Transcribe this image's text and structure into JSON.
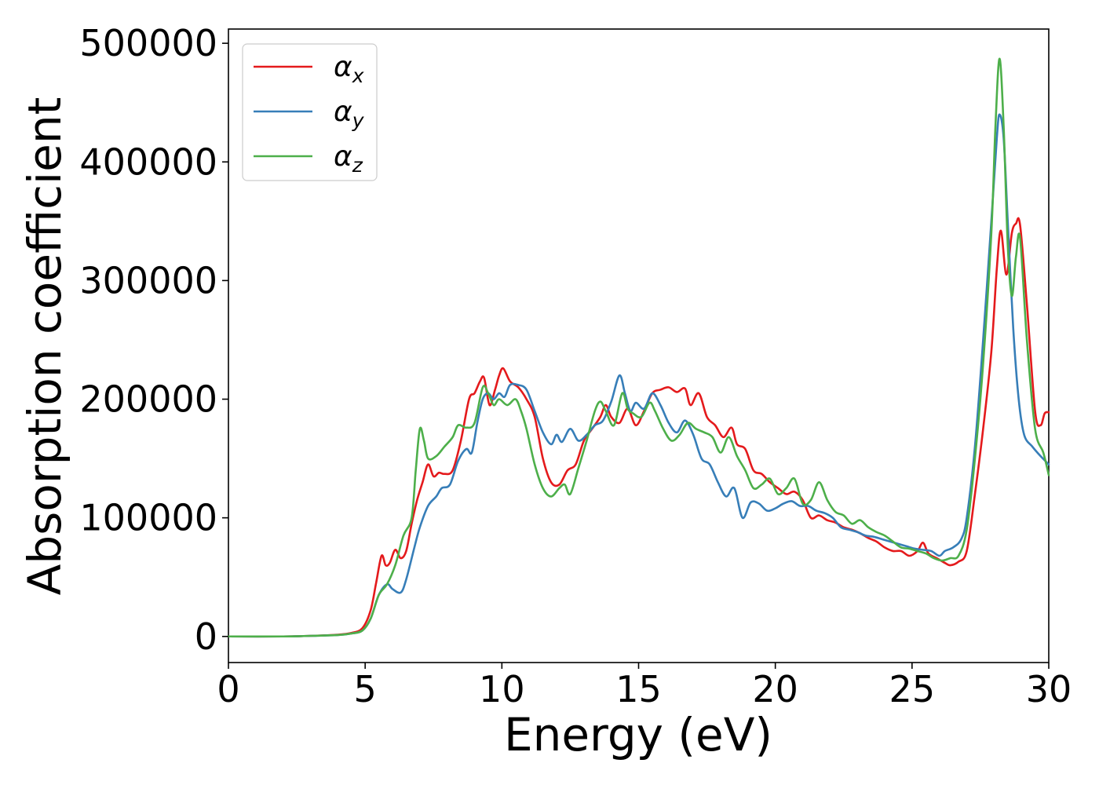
{
  "chart_data": {
    "type": "line",
    "title": "",
    "xlabel": "Energy (eV)",
    "ylabel": "Absorption coefficient",
    "xlim": [
      0,
      30
    ],
    "ylim": [
      -22000,
      512000
    ],
    "xticks": [
      0,
      5,
      10,
      15,
      20,
      25,
      30
    ],
    "xtick_labels": [
      "0",
      "5",
      "10",
      "15",
      "20",
      "25",
      "30"
    ],
    "yticks": [
      0,
      100000,
      200000,
      300000,
      400000,
      500000
    ],
    "ytick_labels": [
      "0",
      "100000",
      "200000",
      "300000",
      "400000",
      "500000"
    ],
    "grid": false,
    "legend_position": "top-left",
    "series": [
      {
        "name": "α_x",
        "label_main": "α",
        "label_sub": "x",
        "color": "#e41a1c",
        "points": [
          [
            0,
            0
          ],
          [
            2,
            0
          ],
          [
            3,
            500
          ],
          [
            4,
            1500
          ],
          [
            4.5,
            3000
          ],
          [
            4.9,
            7000
          ],
          [
            5.2,
            22000
          ],
          [
            5.4,
            45000
          ],
          [
            5.6,
            68000
          ],
          [
            5.75,
            60000
          ],
          [
            5.9,
            62000
          ],
          [
            6.1,
            73000
          ],
          [
            6.3,
            66000
          ],
          [
            6.5,
            72000
          ],
          [
            6.7,
            95000
          ],
          [
            6.9,
            115000
          ],
          [
            7.1,
            130000
          ],
          [
            7.3,
            145000
          ],
          [
            7.5,
            135000
          ],
          [
            7.7,
            138000
          ],
          [
            7.9,
            137000
          ],
          [
            8.2,
            140000
          ],
          [
            8.5,
            165000
          ],
          [
            8.8,
            200000
          ],
          [
            9.0,
            205000
          ],
          [
            9.2,
            215000
          ],
          [
            9.35,
            218000
          ],
          [
            9.55,
            195000
          ],
          [
            9.75,
            208000
          ],
          [
            9.9,
            220000
          ],
          [
            10.05,
            226000
          ],
          [
            10.3,
            215000
          ],
          [
            10.6,
            210000
          ],
          [
            10.9,
            200000
          ],
          [
            11.2,
            185000
          ],
          [
            11.5,
            150000
          ],
          [
            11.8,
            130000
          ],
          [
            12.1,
            128000
          ],
          [
            12.4,
            140000
          ],
          [
            12.7,
            145000
          ],
          [
            13.0,
            165000
          ],
          [
            13.3,
            175000
          ],
          [
            13.6,
            185000
          ],
          [
            13.8,
            195000
          ],
          [
            14.0,
            185000
          ],
          [
            14.3,
            180000
          ],
          [
            14.6,
            192000
          ],
          [
            14.9,
            178000
          ],
          [
            15.2,
            190000
          ],
          [
            15.5,
            205000
          ],
          [
            15.8,
            208000
          ],
          [
            16.1,
            210000
          ],
          [
            16.4,
            206000
          ],
          [
            16.7,
            209000
          ],
          [
            16.9,
            195000
          ],
          [
            17.2,
            205000
          ],
          [
            17.5,
            185000
          ],
          [
            17.8,
            178000
          ],
          [
            18.1,
            168000
          ],
          [
            18.4,
            176000
          ],
          [
            18.6,
            162000
          ],
          [
            18.9,
            158000
          ],
          [
            19.2,
            140000
          ],
          [
            19.5,
            137000
          ],
          [
            19.8,
            130000
          ],
          [
            20.1,
            125000
          ],
          [
            20.4,
            120000
          ],
          [
            20.7,
            122000
          ],
          [
            21.0,
            115000
          ],
          [
            21.3,
            100000
          ],
          [
            21.6,
            102000
          ],
          [
            21.9,
            98000
          ],
          [
            22.2,
            96000
          ],
          [
            22.5,
            92000
          ],
          [
            22.8,
            90000
          ],
          [
            23.1,
            87000
          ],
          [
            23.4,
            83000
          ],
          [
            23.7,
            80000
          ],
          [
            24.0,
            75000
          ],
          [
            24.3,
            72000
          ],
          [
            24.6,
            72000
          ],
          [
            24.9,
            68000
          ],
          [
            25.2,
            72000
          ],
          [
            25.4,
            79000
          ],
          [
            25.6,
            70000
          ],
          [
            25.9,
            66000
          ],
          [
            26.2,
            62000
          ],
          [
            26.4,
            60000
          ],
          [
            26.7,
            63000
          ],
          [
            27.0,
            72000
          ],
          [
            27.3,
            120000
          ],
          [
            27.6,
            175000
          ],
          [
            27.9,
            240000
          ],
          [
            28.1,
            310000
          ],
          [
            28.25,
            342000
          ],
          [
            28.45,
            305000
          ],
          [
            28.65,
            340000
          ],
          [
            28.8,
            348000
          ],
          [
            28.95,
            347000
          ],
          [
            29.2,
            280000
          ],
          [
            29.5,
            190000
          ],
          [
            29.7,
            178000
          ],
          [
            29.85,
            188000
          ],
          [
            30.0,
            189000
          ]
        ]
      },
      {
        "name": "α_y",
        "label_main": "α",
        "label_sub": "y",
        "color": "#377eb8",
        "points": [
          [
            0,
            0
          ],
          [
            2,
            0
          ],
          [
            3,
            500
          ],
          [
            4,
            1200
          ],
          [
            4.5,
            2500
          ],
          [
            4.9,
            5000
          ],
          [
            5.2,
            15000
          ],
          [
            5.5,
            35000
          ],
          [
            5.8,
            44000
          ],
          [
            6.0,
            40000
          ],
          [
            6.3,
            37000
          ],
          [
            6.5,
            48000
          ],
          [
            6.8,
            75000
          ],
          [
            7.0,
            92000
          ],
          [
            7.3,
            110000
          ],
          [
            7.6,
            118000
          ],
          [
            7.8,
            125000
          ],
          [
            8.1,
            128000
          ],
          [
            8.4,
            148000
          ],
          [
            8.7,
            158000
          ],
          [
            8.9,
            155000
          ],
          [
            9.1,
            180000
          ],
          [
            9.3,
            200000
          ],
          [
            9.5,
            205000
          ],
          [
            9.7,
            200000
          ],
          [
            9.9,
            205000
          ],
          [
            10.1,
            202000
          ],
          [
            10.3,
            212000
          ],
          [
            10.6,
            212000
          ],
          [
            10.9,
            208000
          ],
          [
            11.2,
            190000
          ],
          [
            11.5,
            172000
          ],
          [
            11.8,
            162000
          ],
          [
            12.0,
            170000
          ],
          [
            12.2,
            164000
          ],
          [
            12.5,
            175000
          ],
          [
            12.8,
            165000
          ],
          [
            13.1,
            170000
          ],
          [
            13.4,
            178000
          ],
          [
            13.7,
            182000
          ],
          [
            14.0,
            198000
          ],
          [
            14.3,
            220000
          ],
          [
            14.5,
            205000
          ],
          [
            14.7,
            190000
          ],
          [
            14.9,
            197000
          ],
          [
            15.2,
            192000
          ],
          [
            15.5,
            205000
          ],
          [
            15.8,
            195000
          ],
          [
            16.1,
            180000
          ],
          [
            16.4,
            172000
          ],
          [
            16.7,
            182000
          ],
          [
            17.0,
            170000
          ],
          [
            17.3,
            150000
          ],
          [
            17.6,
            145000
          ],
          [
            17.9,
            130000
          ],
          [
            18.2,
            118000
          ],
          [
            18.5,
            125000
          ],
          [
            18.8,
            100000
          ],
          [
            19.1,
            113000
          ],
          [
            19.4,
            112000
          ],
          [
            19.7,
            106000
          ],
          [
            20.0,
            108000
          ],
          [
            20.3,
            112000
          ],
          [
            20.6,
            114000
          ],
          [
            20.9,
            110000
          ],
          [
            21.2,
            110000
          ],
          [
            21.5,
            106000
          ],
          [
            21.8,
            104000
          ],
          [
            22.1,
            100000
          ],
          [
            22.4,
            92000
          ],
          [
            22.7,
            90000
          ],
          [
            23.0,
            88000
          ],
          [
            23.3,
            85000
          ],
          [
            23.6,
            84000
          ],
          [
            23.9,
            82000
          ],
          [
            24.2,
            80000
          ],
          [
            24.5,
            78000
          ],
          [
            24.8,
            76000
          ],
          [
            25.1,
            74000
          ],
          [
            25.4,
            73000
          ],
          [
            25.7,
            72000
          ],
          [
            26.0,
            68000
          ],
          [
            26.2,
            72000
          ],
          [
            26.5,
            75000
          ],
          [
            26.8,
            82000
          ],
          [
            27.0,
            100000
          ],
          [
            27.3,
            160000
          ],
          [
            27.6,
            250000
          ],
          [
            27.9,
            350000
          ],
          [
            28.1,
            420000
          ],
          [
            28.2,
            440000
          ],
          [
            28.35,
            420000
          ],
          [
            28.5,
            350000
          ],
          [
            28.7,
            260000
          ],
          [
            28.9,
            200000
          ],
          [
            29.1,
            170000
          ],
          [
            29.4,
            160000
          ],
          [
            29.7,
            152000
          ],
          [
            30.0,
            145000
          ]
        ]
      },
      {
        "name": "α_z",
        "label_main": "α",
        "label_sub": "z",
        "color": "#4daf4a",
        "points": [
          [
            0,
            0
          ],
          [
            2,
            0
          ],
          [
            3,
            500
          ],
          [
            4,
            1200
          ],
          [
            4.5,
            2500
          ],
          [
            4.9,
            5000
          ],
          [
            5.2,
            15000
          ],
          [
            5.5,
            35000
          ],
          [
            5.8,
            44000
          ],
          [
            6.1,
            60000
          ],
          [
            6.4,
            85000
          ],
          [
            6.7,
            100000
          ],
          [
            6.85,
            140000
          ],
          [
            7.0,
            175000
          ],
          [
            7.15,
            165000
          ],
          [
            7.3,
            150000
          ],
          [
            7.6,
            152000
          ],
          [
            7.9,
            160000
          ],
          [
            8.2,
            168000
          ],
          [
            8.4,
            178000
          ],
          [
            8.7,
            176000
          ],
          [
            9.0,
            180000
          ],
          [
            9.3,
            210000
          ],
          [
            9.5,
            205000
          ],
          [
            9.7,
            195000
          ],
          [
            9.9,
            200000
          ],
          [
            10.2,
            195000
          ],
          [
            10.5,
            200000
          ],
          [
            10.7,
            190000
          ],
          [
            10.9,
            175000
          ],
          [
            11.2,
            145000
          ],
          [
            11.5,
            125000
          ],
          [
            11.8,
            118000
          ],
          [
            12.1,
            125000
          ],
          [
            12.3,
            128000
          ],
          [
            12.5,
            120000
          ],
          [
            12.8,
            142000
          ],
          [
            13.1,
            165000
          ],
          [
            13.4,
            190000
          ],
          [
            13.6,
            198000
          ],
          [
            13.8,
            190000
          ],
          [
            14.1,
            178000
          ],
          [
            14.4,
            205000
          ],
          [
            14.6,
            192000
          ],
          [
            14.8,
            188000
          ],
          [
            15.1,
            185000
          ],
          [
            15.4,
            197000
          ],
          [
            15.6,
            190000
          ],
          [
            15.9,
            175000
          ],
          [
            16.2,
            165000
          ],
          [
            16.5,
            170000
          ],
          [
            16.8,
            180000
          ],
          [
            17.1,
            175000
          ],
          [
            17.4,
            172000
          ],
          [
            17.7,
            168000
          ],
          [
            18.0,
            155000
          ],
          [
            18.3,
            168000
          ],
          [
            18.6,
            152000
          ],
          [
            18.9,
            140000
          ],
          [
            19.2,
            125000
          ],
          [
            19.5,
            128000
          ],
          [
            19.8,
            133000
          ],
          [
            20.1,
            120000
          ],
          [
            20.4,
            125000
          ],
          [
            20.7,
            133000
          ],
          [
            21.0,
            112000
          ],
          [
            21.3,
            115000
          ],
          [
            21.6,
            130000
          ],
          [
            21.9,
            115000
          ],
          [
            22.2,
            105000
          ],
          [
            22.5,
            102000
          ],
          [
            22.8,
            95000
          ],
          [
            23.1,
            98000
          ],
          [
            23.4,
            92000
          ],
          [
            23.7,
            88000
          ],
          [
            24.0,
            85000
          ],
          [
            24.3,
            80000
          ],
          [
            24.6,
            75000
          ],
          [
            24.9,
            74000
          ],
          [
            25.2,
            72000
          ],
          [
            25.5,
            70000
          ],
          [
            25.8,
            66000
          ],
          [
            26.1,
            64000
          ],
          [
            26.4,
            66000
          ],
          [
            26.7,
            68000
          ],
          [
            27.0,
            90000
          ],
          [
            27.3,
            150000
          ],
          [
            27.6,
            230000
          ],
          [
            27.9,
            340000
          ],
          [
            28.05,
            430000
          ],
          [
            28.2,
            487000
          ],
          [
            28.35,
            430000
          ],
          [
            28.5,
            330000
          ],
          [
            28.65,
            287000
          ],
          [
            28.8,
            320000
          ],
          [
            28.95,
            336000
          ],
          [
            29.2,
            250000
          ],
          [
            29.5,
            175000
          ],
          [
            29.8,
            155000
          ],
          [
            30.0,
            136000
          ]
        ]
      }
    ]
  }
}
